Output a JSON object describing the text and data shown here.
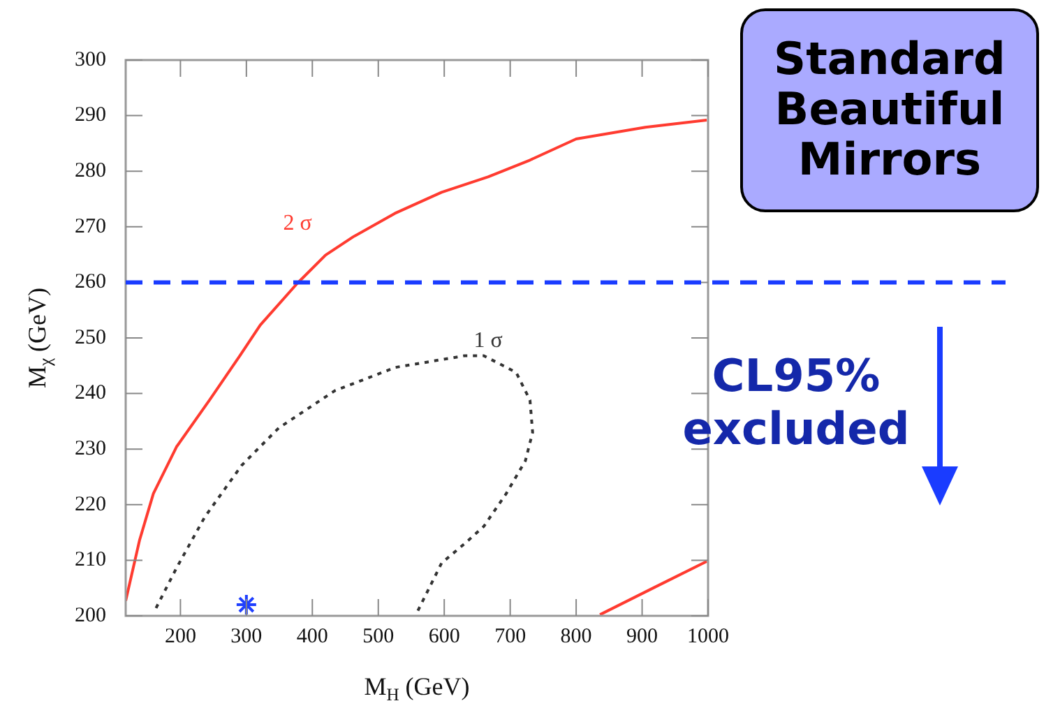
{
  "chart_data": {
    "type": "line",
    "xlabel": "M$_{H}$ (GeV)",
    "ylabel": "M$_{χ}$ (GeV)",
    "xlim": [
      117,
      1000
    ],
    "xticks": [
      200,
      300,
      400,
      500,
      600,
      700,
      800,
      900,
      1000
    ],
    "ylim": [
      200,
      300
    ],
    "yticks": [
      200,
      210,
      220,
      230,
      240,
      250,
      260,
      270,
      280,
      290,
      300
    ],
    "grid": false,
    "legend": false,
    "marker": "none",
    "series": [
      {
        "name": "2 σ",
        "color": "#ff3b30",
        "x": [
          117,
          138,
          159,
          194,
          244,
          293,
          321,
          377,
          420,
          462,
          525,
          596,
          667,
          730,
          800,
          905,
          998
        ],
        "values": [
          202.7,
          213.6,
          222,
          230.4,
          238.8,
          247.3,
          252.3,
          259.8,
          264.9,
          268.2,
          272.4,
          276.2,
          279,
          282,
          285.8,
          287.9,
          289.2
        ]
      },
      {
        "color": "#ff3b30",
        "x": [
          836,
          920,
          998
        ],
        "values": [
          200.2,
          205.2,
          209.8
        ]
      },
      {
        "name": "1 σ",
        "color": "#333333",
        "line_style": "dotted",
        "x": [
          163,
          194,
          237,
          293,
          349,
          434,
          526,
          631,
          660,
          709,
          730,
          734,
          723,
          694,
          660,
          631,
          596,
          557
        ],
        "values": [
          201.4,
          208.6,
          217.8,
          227.1,
          233.8,
          240.5,
          244.7,
          246.8,
          246.8,
          243.8,
          238.8,
          233,
          227.9,
          222,
          216.1,
          213,
          209.5,
          200.2
        ]
      },
      {
        "type": "scatter",
        "marker": "cross",
        "color": "#1f3fff",
        "x": [
          300
        ],
        "values": [
          202
        ]
      }
    ],
    "ref_lines": [
      {
        "axis": "y",
        "value": 260,
        "color": "#1a3cff",
        "line_style": "dashed"
      }
    ],
    "annotations": [
      "Standard Beautiful Mirrors",
      "CL95% excluded"
    ]
  }
}
